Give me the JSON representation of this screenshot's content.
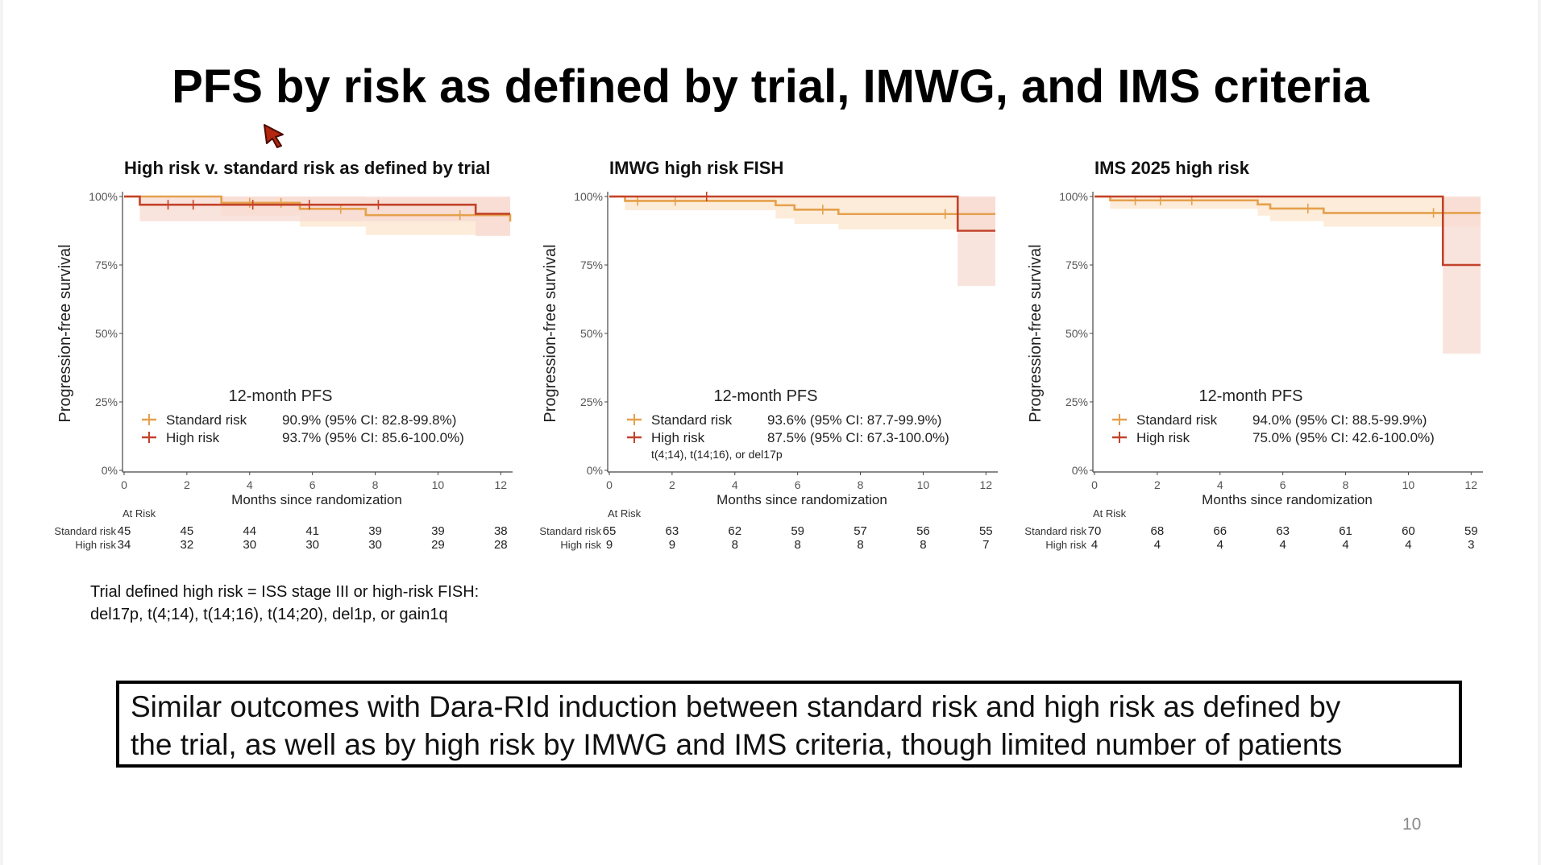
{
  "title": "PFS by risk as defined by trial, IMWG, and IMS criteria",
  "footnote": {
    "line1": "Trial defined high risk = ISS stage III or high-risk FISH:",
    "line2": "del17p, t(4;14), t(14;16), t(14;20), del1p, or gain1q"
  },
  "conclusion": {
    "line1": "Similar outcomes with Dara-RId induction between standard risk and high risk as defined by",
    "line2": "the trial, as well as by high risk by IMWG and IMS criteria, though limited number of patients"
  },
  "page_number": "10",
  "colors": {
    "standard": "#e5a04c",
    "high": "#c2422a",
    "standard_ci": "#fbe5cc",
    "high_ci": "#f7d9d2"
  },
  "chart_data": [
    {
      "type": "line",
      "title": "High risk v. standard risk as defined by trial",
      "xlabel": "Months since randomization",
      "ylabel": "Progression-free survival",
      "x_ticks": [
        0,
        2,
        4,
        6,
        8,
        10,
        12
      ],
      "y_ticks": [
        "0%",
        "25%",
        "50%",
        "75%",
        "100%"
      ],
      "xlim": [
        0,
        12.3
      ],
      "ylim": [
        0,
        100
      ],
      "pfs_header": "12-month PFS",
      "series": [
        {
          "name": "Standard risk",
          "pfs": "90.9% (95% CI: 82.8-99.8%)",
          "x": [
            0,
            3.1,
            5.6,
            7.7,
            12.3
          ],
          "y": [
            100,
            97.7,
            95.5,
            93.2,
            90.9
          ],
          "ci_lower": [
            100,
            93,
            89,
            86,
            83
          ],
          "ci_upper": [
            100,
            100,
            100,
            99.5,
            99.8
          ],
          "censor_x": [
            4,
            5,
            6.9,
            10.7
          ]
        },
        {
          "name": "High risk",
          "pfs": "93.7% (95% CI: 85.6-100.0%)",
          "x": [
            0,
            0.5,
            5.2,
            11.2,
            12.3
          ],
          "y": [
            100,
            97,
            97,
            93.7,
            93.7
          ],
          "ci_lower": [
            100,
            91,
            91,
            85.6,
            85.6
          ],
          "ci_upper": [
            100,
            100,
            100,
            100,
            100
          ],
          "censor_x": [
            1.4,
            2.2,
            4.1,
            5.9,
            8.1
          ]
        }
      ],
      "legend_note": "",
      "at_risk_label": "At Risk",
      "at_risk": [
        {
          "name": "Standard risk",
          "counts": [
            "45",
            "45",
            "44",
            "41",
            "39",
            "39",
            "38"
          ]
        },
        {
          "name": "High risk",
          "counts": [
            "34",
            "32",
            "30",
            "30",
            "30",
            "29",
            "28"
          ]
        }
      ]
    },
    {
      "type": "line",
      "title": "IMWG high risk FISH",
      "xlabel": "Months since randomization",
      "ylabel": "Progression-free survival",
      "x_ticks": [
        0,
        2,
        4,
        6,
        8,
        10,
        12
      ],
      "y_ticks": [
        "0%",
        "25%",
        "50%",
        "75%",
        "100%"
      ],
      "xlim": [
        0,
        12.3
      ],
      "ylim": [
        0,
        100
      ],
      "pfs_header": "12-month PFS",
      "series": [
        {
          "name": "Standard risk",
          "pfs": "93.6% (95% CI: 87.7-99.9%)",
          "x": [
            0,
            0.5,
            5.3,
            5.9,
            7.3,
            12.3
          ],
          "y": [
            100,
            98.4,
            96.8,
            95.2,
            93.6,
            93.6
          ],
          "ci_lower": [
            100,
            95,
            92,
            90,
            88,
            87.7
          ],
          "ci_upper": [
            100,
            100,
            100,
            100,
            99.9,
            99.9
          ],
          "censor_x": [
            0.9,
            2.1,
            6.8,
            10.7
          ]
        },
        {
          "name": "High risk",
          "pfs": "87.5% (95% CI: 67.3-100.0%)",
          "x": [
            0,
            11.1,
            12.3
          ],
          "y": [
            100,
            87.5,
            87.5
          ],
          "ci_lower": [
            100,
            67.3,
            67.3
          ],
          "ci_upper": [
            100,
            100,
            100
          ],
          "censor_x": [
            3.1
          ]
        }
      ],
      "legend_note": "t(4;14), t(14;16), or del17p",
      "at_risk_label": "At Risk",
      "at_risk": [
        {
          "name": "Standard risk",
          "counts": [
            "65",
            "63",
            "62",
            "59",
            "57",
            "56",
            "55"
          ]
        },
        {
          "name": "High risk",
          "counts": [
            "9",
            "9",
            "8",
            "8",
            "8",
            "8",
            "7"
          ]
        }
      ]
    },
    {
      "type": "line",
      "title": "IMS 2025 high risk",
      "xlabel": "Months since randomization",
      "ylabel": "Progression-free survival",
      "x_ticks": [
        0,
        2,
        4,
        6,
        8,
        10,
        12
      ],
      "y_ticks": [
        "0%",
        "25%",
        "50%",
        "75%",
        "100%"
      ],
      "xlim": [
        0,
        12.3
      ],
      "ylim": [
        0,
        100
      ],
      "pfs_header": "12-month PFS",
      "series": [
        {
          "name": "Standard risk",
          "pfs": "94.0% (95% CI: 88.5-99.9%)",
          "x": [
            0,
            0.5,
            5.2,
            5.6,
            7.3,
            12.3
          ],
          "y": [
            100,
            98.6,
            97.1,
            95.6,
            94.0,
            94.0
          ],
          "ci_lower": [
            100,
            95.5,
            93,
            91,
            89,
            88.5
          ],
          "ci_upper": [
            100,
            100,
            100,
            100,
            99.9,
            99.9
          ],
          "censor_x": [
            1.3,
            2.1,
            3.1,
            6.8,
            10.8
          ]
        },
        {
          "name": "High risk",
          "pfs": "75.0% (95% CI: 42.6-100.0%)",
          "x": [
            0,
            11.1,
            12.3
          ],
          "y": [
            100,
            75,
            75
          ],
          "ci_lower": [
            100,
            42.6,
            42.6
          ],
          "ci_upper": [
            100,
            100,
            100
          ],
          "censor_x": []
        }
      ],
      "legend_note": "",
      "at_risk_label": "At Risk",
      "at_risk": [
        {
          "name": "Standard risk",
          "counts": [
            "70",
            "68",
            "66",
            "63",
            "61",
            "60",
            "59"
          ]
        },
        {
          "name": "High risk",
          "counts": [
            "4",
            "4",
            "4",
            "4",
            "4",
            "4",
            "3"
          ]
        }
      ]
    }
  ]
}
